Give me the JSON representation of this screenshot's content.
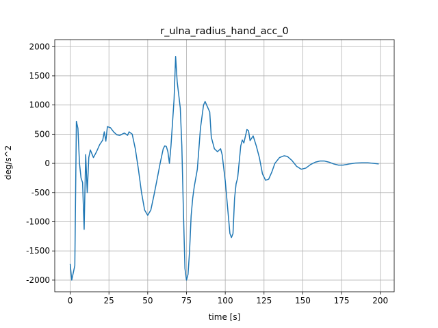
{
  "chart_data": {
    "type": "line",
    "title": "r_ulna_radius_hand_acc_0",
    "x_label": "time [s]",
    "y_label": "deg/s^2",
    "x": [
      0,
      1,
      3,
      4,
      5,
      6,
      7,
      8,
      9,
      10,
      11,
      12,
      13,
      15,
      17,
      19,
      21,
      22,
      23,
      24,
      26,
      28,
      30,
      32,
      35,
      37,
      38,
      40,
      42,
      44,
      46,
      48,
      50,
      52,
      54,
      56,
      58,
      60,
      61,
      62,
      63,
      64,
      65,
      67,
      68,
      69,
      71,
      72,
      73,
      74,
      75,
      76,
      77,
      78,
      79,
      80,
      82,
      84,
      86,
      87,
      88,
      90,
      91,
      93,
      95,
      97,
      98,
      100,
      102,
      103,
      104,
      105,
      106,
      107,
      108,
      110,
      111,
      112,
      114,
      115,
      116,
      118,
      120,
      122,
      124,
      126,
      128,
      130,
      132,
      135,
      138,
      140,
      143,
      146,
      149,
      152,
      155,
      158,
      161,
      164,
      167,
      170,
      173,
      176,
      180,
      184,
      188,
      192,
      196,
      199
    ],
    "series": [
      {
        "name": "r_ulna_radius_hand_acc_0",
        "color": "#1f77b4",
        "values": [
          -1720,
          -2000,
          -1750,
          720,
          600,
          0,
          -250,
          -330,
          -1130,
          150,
          -500,
          100,
          230,
          100,
          200,
          320,
          400,
          540,
          380,
          630,
          610,
          540,
          490,
          480,
          520,
          480,
          540,
          500,
          250,
          -100,
          -500,
          -800,
          -890,
          -800,
          -550,
          -280,
          0,
          250,
          300,
          290,
          200,
          0,
          300,
          1100,
          1830,
          1400,
          950,
          300,
          -800,
          -1800,
          -2000,
          -1900,
          -1500,
          -900,
          -600,
          -400,
          -100,
          600,
          1000,
          1060,
          1000,
          880,
          450,
          250,
          200,
          250,
          150,
          -300,
          -900,
          -1200,
          -1270,
          -1200,
          -600,
          -350,
          -250,
          300,
          400,
          350,
          580,
          560,
          390,
          470,
          300,
          100,
          -180,
          -290,
          -270,
          -150,
          0,
          100,
          130,
          120,
          50,
          -50,
          -100,
          -80,
          -20,
          20,
          40,
          40,
          20,
          -10,
          -30,
          -30,
          -10,
          5,
          10,
          10,
          0,
          -10
        ]
      }
    ],
    "xlim": [
      -9.95,
      208.95
    ],
    "ylim": [
      -2200,
      2120
    ],
    "xticks": [
      0,
      25,
      50,
      75,
      100,
      125,
      150,
      175,
      200
    ],
    "yticks": [
      -2000,
      -1500,
      -1000,
      -500,
      0,
      500,
      1000,
      1500,
      2000
    ],
    "grid": true
  }
}
